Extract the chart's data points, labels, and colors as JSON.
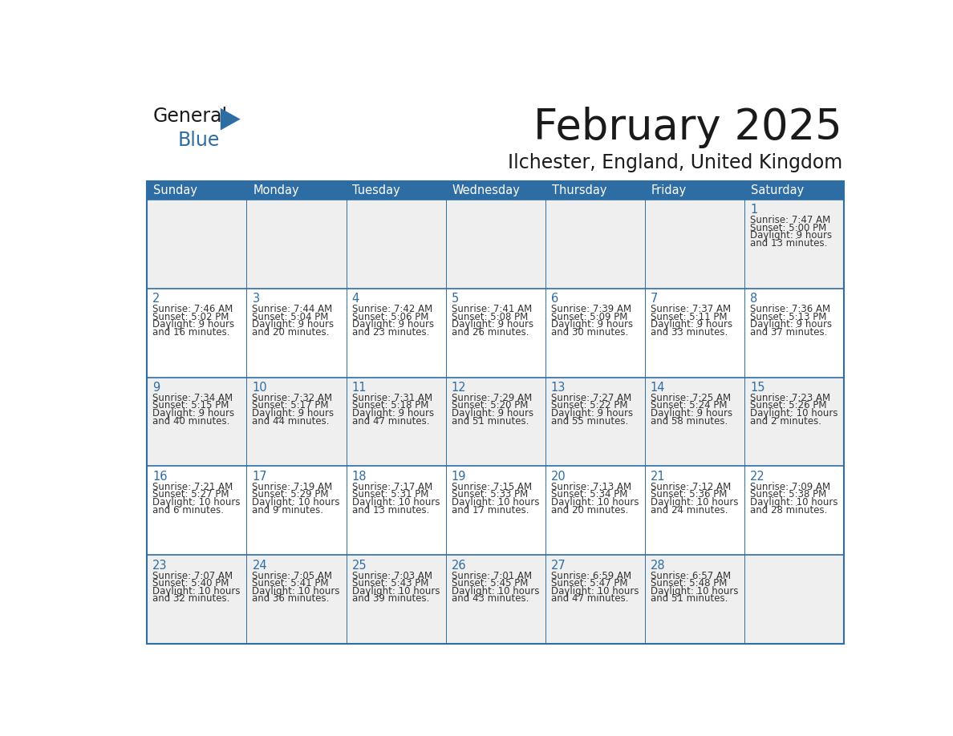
{
  "title": "February 2025",
  "subtitle": "Ilchester, England, United Kingdom",
  "days_of_week": [
    "Sunday",
    "Monday",
    "Tuesday",
    "Wednesday",
    "Thursday",
    "Friday",
    "Saturday"
  ],
  "header_bg": "#2E6DA4",
  "header_text": "#FFFFFF",
  "cell_bg_odd": "#EFEFEF",
  "cell_bg_even": "#FFFFFF",
  "border_color": "#2E6DA4",
  "day_number_color": "#2E6DA4",
  "text_color": "#333333",
  "title_color": "#1a1a1a",
  "logo_general_color": "#1a1a1a",
  "logo_blue_color": "#2E6DA4",
  "logo_triangle_color": "#2E6DA4",
  "calendar_data": [
    [
      null,
      null,
      null,
      null,
      null,
      null,
      {
        "day": 1,
        "sunrise": "7:47 AM",
        "sunset": "5:00 PM",
        "dl1": "Daylight: 9 hours",
        "dl2": "and 13 minutes."
      }
    ],
    [
      {
        "day": 2,
        "sunrise": "7:46 AM",
        "sunset": "5:02 PM",
        "dl1": "Daylight: 9 hours",
        "dl2": "and 16 minutes."
      },
      {
        "day": 3,
        "sunrise": "7:44 AM",
        "sunset": "5:04 PM",
        "dl1": "Daylight: 9 hours",
        "dl2": "and 20 minutes."
      },
      {
        "day": 4,
        "sunrise": "7:42 AM",
        "sunset": "5:06 PM",
        "dl1": "Daylight: 9 hours",
        "dl2": "and 23 minutes."
      },
      {
        "day": 5,
        "sunrise": "7:41 AM",
        "sunset": "5:08 PM",
        "dl1": "Daylight: 9 hours",
        "dl2": "and 26 minutes."
      },
      {
        "day": 6,
        "sunrise": "7:39 AM",
        "sunset": "5:09 PM",
        "dl1": "Daylight: 9 hours",
        "dl2": "and 30 minutes."
      },
      {
        "day": 7,
        "sunrise": "7:37 AM",
        "sunset": "5:11 PM",
        "dl1": "Daylight: 9 hours",
        "dl2": "and 33 minutes."
      },
      {
        "day": 8,
        "sunrise": "7:36 AM",
        "sunset": "5:13 PM",
        "dl1": "Daylight: 9 hours",
        "dl2": "and 37 minutes."
      }
    ],
    [
      {
        "day": 9,
        "sunrise": "7:34 AM",
        "sunset": "5:15 PM",
        "dl1": "Daylight: 9 hours",
        "dl2": "and 40 minutes."
      },
      {
        "day": 10,
        "sunrise": "7:32 AM",
        "sunset": "5:17 PM",
        "dl1": "Daylight: 9 hours",
        "dl2": "and 44 minutes."
      },
      {
        "day": 11,
        "sunrise": "7:31 AM",
        "sunset": "5:18 PM",
        "dl1": "Daylight: 9 hours",
        "dl2": "and 47 minutes."
      },
      {
        "day": 12,
        "sunrise": "7:29 AM",
        "sunset": "5:20 PM",
        "dl1": "Daylight: 9 hours",
        "dl2": "and 51 minutes."
      },
      {
        "day": 13,
        "sunrise": "7:27 AM",
        "sunset": "5:22 PM",
        "dl1": "Daylight: 9 hours",
        "dl2": "and 55 minutes."
      },
      {
        "day": 14,
        "sunrise": "7:25 AM",
        "sunset": "5:24 PM",
        "dl1": "Daylight: 9 hours",
        "dl2": "and 58 minutes."
      },
      {
        "day": 15,
        "sunrise": "7:23 AM",
        "sunset": "5:26 PM",
        "dl1": "Daylight: 10 hours",
        "dl2": "and 2 minutes."
      }
    ],
    [
      {
        "day": 16,
        "sunrise": "7:21 AM",
        "sunset": "5:27 PM",
        "dl1": "Daylight: 10 hours",
        "dl2": "and 6 minutes."
      },
      {
        "day": 17,
        "sunrise": "7:19 AM",
        "sunset": "5:29 PM",
        "dl1": "Daylight: 10 hours",
        "dl2": "and 9 minutes."
      },
      {
        "day": 18,
        "sunrise": "7:17 AM",
        "sunset": "5:31 PM",
        "dl1": "Daylight: 10 hours",
        "dl2": "and 13 minutes."
      },
      {
        "day": 19,
        "sunrise": "7:15 AM",
        "sunset": "5:33 PM",
        "dl1": "Daylight: 10 hours",
        "dl2": "and 17 minutes."
      },
      {
        "day": 20,
        "sunrise": "7:13 AM",
        "sunset": "5:34 PM",
        "dl1": "Daylight: 10 hours",
        "dl2": "and 20 minutes."
      },
      {
        "day": 21,
        "sunrise": "7:12 AM",
        "sunset": "5:36 PM",
        "dl1": "Daylight: 10 hours",
        "dl2": "and 24 minutes."
      },
      {
        "day": 22,
        "sunrise": "7:09 AM",
        "sunset": "5:38 PM",
        "dl1": "Daylight: 10 hours",
        "dl2": "and 28 minutes."
      }
    ],
    [
      {
        "day": 23,
        "sunrise": "7:07 AM",
        "sunset": "5:40 PM",
        "dl1": "Daylight: 10 hours",
        "dl2": "and 32 minutes."
      },
      {
        "day": 24,
        "sunrise": "7:05 AM",
        "sunset": "5:41 PM",
        "dl1": "Daylight: 10 hours",
        "dl2": "and 36 minutes."
      },
      {
        "day": 25,
        "sunrise": "7:03 AM",
        "sunset": "5:43 PM",
        "dl1": "Daylight: 10 hours",
        "dl2": "and 39 minutes."
      },
      {
        "day": 26,
        "sunrise": "7:01 AM",
        "sunset": "5:45 PM",
        "dl1": "Daylight: 10 hours",
        "dl2": "and 43 minutes."
      },
      {
        "day": 27,
        "sunrise": "6:59 AM",
        "sunset": "5:47 PM",
        "dl1": "Daylight: 10 hours",
        "dl2": "and 47 minutes."
      },
      {
        "day": 28,
        "sunrise": "6:57 AM",
        "sunset": "5:48 PM",
        "dl1": "Daylight: 10 hours",
        "dl2": "and 51 minutes."
      },
      null
    ]
  ]
}
